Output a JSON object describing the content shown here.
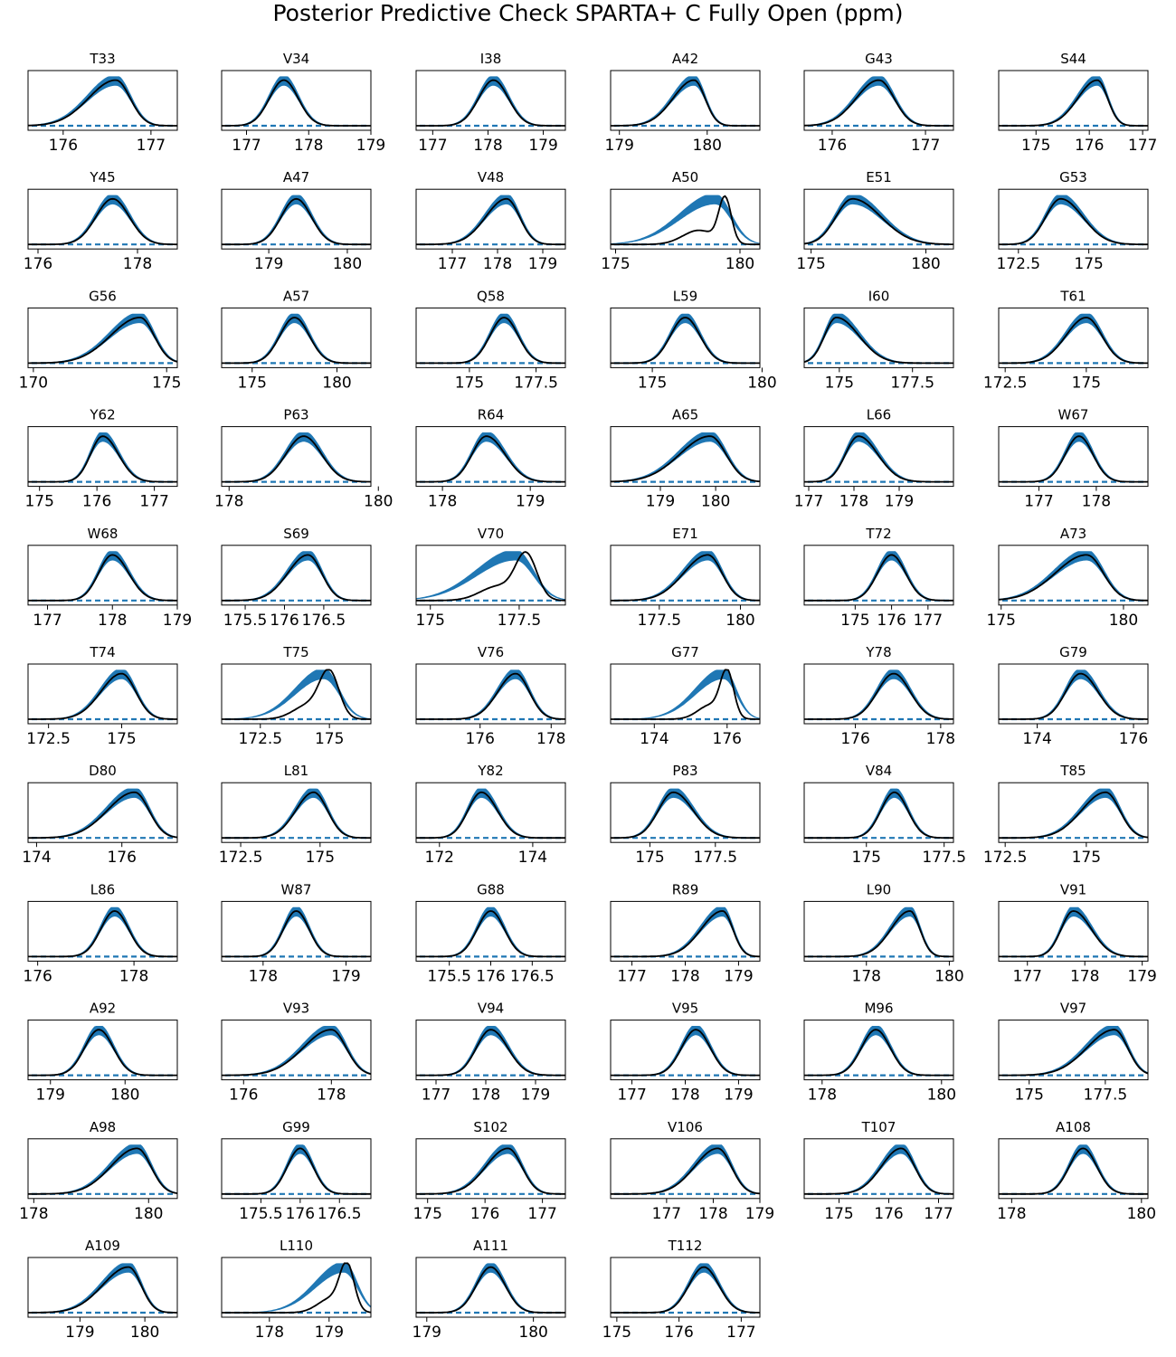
{
  "title": "Posterior Predictive Check SPARTA+ C Fully Open (ppm)",
  "colors": {
    "posterior_band": "#1f77b4",
    "observed_line": "#000000",
    "axes": "#000000"
  },
  "chart_data": [
    {
      "type": "line",
      "title": "T33",
      "xlim": [
        175.6,
        177.3
      ],
      "xticks": [
        176,
        177
      ],
      "peak": 176.6,
      "sd": 0.17,
      "skew": -1.5
    },
    {
      "type": "line",
      "title": "V34",
      "xlim": [
        176.6,
        179.0
      ],
      "xticks": [
        177,
        178,
        179
      ],
      "peak": 177.6,
      "sd": 0.24,
      "skew": 0
    },
    {
      "type": "line",
      "title": "I38",
      "xlim": [
        176.7,
        179.4
      ],
      "xticks": [
        177,
        178,
        179
      ],
      "peak": 178.1,
      "sd": 0.28,
      "skew": 0
    },
    {
      "type": "line",
      "title": "A42",
      "xlim": [
        178.9,
        180.6
      ],
      "xticks": [
        179,
        180
      ],
      "peak": 179.85,
      "sd": 0.13,
      "skew": -1.5
    },
    {
      "type": "line",
      "title": "G43",
      "xlim": [
        175.7,
        177.3
      ],
      "xticks": [
        176,
        177
      ],
      "peak": 176.5,
      "sd": 0.17,
      "skew": -0.8
    },
    {
      "type": "line",
      "title": "S44",
      "xlim": [
        174.3,
        177.1
      ],
      "xticks": [
        175,
        176,
        177
      ],
      "peak": 176.15,
      "sd": 0.2,
      "skew": -1.5
    },
    {
      "type": "line",
      "title": "Y45",
      "xlim": [
        175.8,
        178.8
      ],
      "xticks": [
        176,
        178
      ],
      "peak": 177.5,
      "sd": 0.35,
      "skew": 0
    },
    {
      "type": "line",
      "title": "A47",
      "xlim": [
        178.4,
        180.3
      ],
      "xticks": [
        179,
        180
      ],
      "peak": 179.35,
      "sd": 0.2,
      "skew": 0
    },
    {
      "type": "line",
      "title": "V48",
      "xlim": [
        176.2,
        179.5
      ],
      "xticks": [
        177,
        178,
        179
      ],
      "peak": 178.2,
      "sd": 0.3,
      "skew": -1
    },
    {
      "type": "line",
      "title": "A50",
      "xlim": [
        174.8,
        180.8
      ],
      "xticks": [
        175,
        180
      ],
      "peak": 179,
      "sd": 0.65,
      "skew": -2,
      "observed_peak": 179.4,
      "observed_sd": 0.25
    },
    {
      "type": "line",
      "title": "E51",
      "xlim": [
        174.7,
        181.2
      ],
      "xticks": [
        175,
        180
      ],
      "peak": 176.8,
      "sd": 0.75,
      "skew": 1.2
    },
    {
      "type": "line",
      "title": "G53",
      "xlim": [
        171.8,
        177.1
      ],
      "xticks": [
        172.5,
        175.0
      ],
      "peak": 174.0,
      "sd": 0.55,
      "skew": 0.8
    },
    {
      "type": "line",
      "title": "G56",
      "xlim": [
        169.8,
        175.4
      ],
      "xticks": [
        170,
        175
      ],
      "peak": 174.0,
      "sd": 0.55,
      "skew": -1.8
    },
    {
      "type": "line",
      "title": "A57",
      "xlim": [
        173.2,
        182.0
      ],
      "xticks": [
        175,
        180
      ],
      "peak": 177.5,
      "sd": 0.9,
      "skew": 0
    },
    {
      "type": "line",
      "title": "Q58",
      "xlim": [
        173.0,
        178.6
      ],
      "xticks": [
        175.0,
        177.5
      ],
      "peak": 176.3,
      "sd": 0.55,
      "skew": 0
    },
    {
      "type": "line",
      "title": "L59",
      "xlim": [
        173.1,
        179.9
      ],
      "xticks": [
        175,
        180
      ],
      "peak": 176.5,
      "sd": 0.7,
      "skew": 0
    },
    {
      "type": "line",
      "title": "I60",
      "xlim": [
        173.8,
        178.9
      ],
      "xticks": [
        175.0,
        177.5
      ],
      "peak": 174.9,
      "sd": 0.42,
      "skew": 1.5
    },
    {
      "type": "line",
      "title": "T61",
      "xlim": [
        172.3,
        176.9
      ],
      "xticks": [
        172.5,
        175.0
      ],
      "peak": 175.0,
      "sd": 0.5,
      "skew": -0.5
    },
    {
      "type": "line",
      "title": "Y62",
      "xlim": [
        174.8,
        177.4
      ],
      "xticks": [
        175,
        176,
        177
      ],
      "peak": 176.1,
      "sd": 0.22,
      "skew": 0.5
    },
    {
      "type": "line",
      "title": "P63",
      "xlim": [
        177.9,
        179.9
      ],
      "xticks": [
        178,
        180
      ],
      "peak": 179.0,
      "sd": 0.25,
      "skew": 0
    },
    {
      "type": "line",
      "title": "R64",
      "xlim": [
        177.7,
        179.4
      ],
      "xticks": [
        178,
        179
      ],
      "peak": 178.5,
      "sd": 0.17,
      "skew": 0.5
    },
    {
      "type": "line",
      "title": "A65",
      "xlim": [
        178.1,
        180.8
      ],
      "xticks": [
        179,
        180
      ],
      "peak": 179.9,
      "sd": 0.3,
      "skew": -1.5
    },
    {
      "type": "line",
      "title": "L66",
      "xlim": [
        176.9,
        180.2
      ],
      "xticks": [
        177,
        178,
        179
      ],
      "peak": 178.1,
      "sd": 0.3,
      "skew": 0.8
    },
    {
      "type": "line",
      "title": "W67",
      "xlim": [
        176.3,
        178.9
      ],
      "xticks": [
        177,
        178
      ],
      "peak": 177.7,
      "sd": 0.25,
      "skew": 0
    },
    {
      "type": "line",
      "title": "W68",
      "xlim": [
        176.7,
        179.0
      ],
      "xticks": [
        177,
        178,
        179
      ],
      "peak": 178.0,
      "sd": 0.22,
      "skew": 0.3
    },
    {
      "type": "line",
      "title": "S69",
      "xlim": [
        175.2,
        177.1
      ],
      "xticks": [
        175.5,
        176.0,
        176.5
      ],
      "peak": 176.3,
      "sd": 0.18,
      "skew": -0.8
    },
    {
      "type": "line",
      "title": "V70",
      "xlim": [
        174.6,
        178.8
      ],
      "xticks": [
        175.0,
        177.5
      ],
      "peak": 177.4,
      "sd": 0.5,
      "skew": -2,
      "observed_peak": 177.7,
      "observed_sd": 0.3
    },
    {
      "type": "line",
      "title": "E71",
      "xlim": [
        176.0,
        180.6
      ],
      "xticks": [
        177.5,
        180.0
      ],
      "peak": 179.0,
      "sd": 0.45,
      "skew": -1.2
    },
    {
      "type": "line",
      "title": "T72",
      "xlim": [
        173.6,
        177.7
      ],
      "xticks": [
        175,
        176,
        177
      ],
      "peak": 176.0,
      "sd": 0.4,
      "skew": 0
    },
    {
      "type": "line",
      "title": "A73",
      "xlim": [
        174.9,
        181.0
      ],
      "xticks": [
        175,
        180
      ],
      "peak": 178.5,
      "sd": 0.7,
      "skew": -1.5
    },
    {
      "type": "line",
      "title": "T74",
      "xlim": [
        171.8,
        176.9
      ],
      "xticks": [
        172.5,
        175.0
      ],
      "peak": 175.0,
      "sd": 0.5,
      "skew": -0.8
    },
    {
      "type": "line",
      "title": "T75",
      "xlim": [
        171.1,
        176.5
      ],
      "xticks": [
        172.5,
        175.0
      ],
      "peak": 174.8,
      "sd": 0.55,
      "skew": -1.5,
      "observed_peak": 175.0,
      "observed_sd": 0.35
    },
    {
      "type": "line",
      "title": "V76",
      "xlim": [
        174.2,
        178.4
      ],
      "xticks": [
        176,
        178
      ],
      "peak": 177.0,
      "sd": 0.4,
      "skew": -0.5
    },
    {
      "type": "line",
      "title": "G77",
      "xlim": [
        172.8,
        176.9
      ],
      "xticks": [
        174,
        176
      ],
      "peak": 175.9,
      "sd": 0.35,
      "skew": -2,
      "observed_peak": 176.0,
      "observed_sd": 0.18
    },
    {
      "type": "line",
      "title": "Y78",
      "xlim": [
        174.8,
        178.3
      ],
      "xticks": [
        176,
        178
      ],
      "peak": 176.9,
      "sd": 0.4,
      "skew": 0
    },
    {
      "type": "line",
      "title": "G79",
      "xlim": [
        173.2,
        176.3
      ],
      "xticks": [
        174,
        176
      ],
      "peak": 174.9,
      "sd": 0.32,
      "skew": 0.3
    },
    {
      "type": "line",
      "title": "D80",
      "xlim": [
        173.8,
        177.3
      ],
      "xticks": [
        174,
        176
      ],
      "peak": 176.3,
      "sd": 0.35,
      "skew": -1.5
    },
    {
      "type": "line",
      "title": "L81",
      "xlim": [
        171.9,
        176.6
      ],
      "xticks": [
        172.5,
        175.0
      ],
      "peak": 174.8,
      "sd": 0.45,
      "skew": -0.5
    },
    {
      "type": "line",
      "title": "Y82",
      "xlim": [
        171.5,
        174.7
      ],
      "xticks": [
        172,
        174
      ],
      "peak": 172.9,
      "sd": 0.3,
      "skew": 0.3
    },
    {
      "type": "line",
      "title": "P83",
      "xlim": [
        173.5,
        179.2
      ],
      "xticks": [
        175.0,
        177.5
      ],
      "peak": 175.9,
      "sd": 0.6,
      "skew": 0.5
    },
    {
      "type": "line",
      "title": "V84",
      "xlim": [
        173.0,
        177.8
      ],
      "xticks": [
        175.0,
        177.5
      ],
      "peak": 175.9,
      "sd": 0.45,
      "skew": 0
    },
    {
      "type": "line",
      "title": "T85",
      "xlim": [
        172.3,
        176.9
      ],
      "xticks": [
        172.5,
        175.0
      ],
      "peak": 175.6,
      "sd": 0.45,
      "skew": -1.2
    },
    {
      "type": "line",
      "title": "L86",
      "xlim": [
        175.8,
        178.9
      ],
      "xticks": [
        176,
        178
      ],
      "peak": 177.6,
      "sd": 0.3,
      "skew": 0
    },
    {
      "type": "line",
      "title": "W87",
      "xlim": [
        177.5,
        179.3
      ],
      "xticks": [
        178,
        179
      ],
      "peak": 178.4,
      "sd": 0.16,
      "skew": 0
    },
    {
      "type": "line",
      "title": "G88",
      "xlim": [
        175.1,
        176.9
      ],
      "xticks": [
        175.5,
        176.0,
        176.5
      ],
      "peak": 176.0,
      "sd": 0.17,
      "skew": 0
    },
    {
      "type": "line",
      "title": "R89",
      "xlim": [
        176.6,
        179.4
      ],
      "xticks": [
        177,
        178,
        179
      ],
      "peak": 178.7,
      "sd": 0.2,
      "skew": -1.8
    },
    {
      "type": "line",
      "title": "L90",
      "xlim": [
        176.5,
        180.1
      ],
      "xticks": [
        178,
        180
      ],
      "peak": 179.05,
      "sd": 0.25,
      "skew": -1.5
    },
    {
      "type": "line",
      "title": "V91",
      "xlim": [
        176.5,
        179.1
      ],
      "xticks": [
        177,
        178,
        179
      ],
      "peak": 177.8,
      "sd": 0.22,
      "skew": 0.8
    },
    {
      "type": "line",
      "title": "A92",
      "xlim": [
        178.7,
        180.7
      ],
      "xticks": [
        179,
        180
      ],
      "peak": 179.65,
      "sd": 0.2,
      "skew": 0
    },
    {
      "type": "line",
      "title": "V93",
      "xlim": [
        175.5,
        178.9
      ],
      "xticks": [
        176,
        178
      ],
      "peak": 178.0,
      "sd": 0.35,
      "skew": -1.5
    },
    {
      "type": "line",
      "title": "V94",
      "xlim": [
        176.6,
        179.6
      ],
      "xticks": [
        177,
        178,
        179
      ],
      "peak": 178.1,
      "sd": 0.3,
      "skew": 0.3
    },
    {
      "type": "line",
      "title": "V95",
      "xlim": [
        176.6,
        179.4
      ],
      "xticks": [
        177,
        178,
        179
      ],
      "peak": 178.2,
      "sd": 0.28,
      "skew": 0
    },
    {
      "type": "line",
      "title": "M96",
      "xlim": [
        177.7,
        180.2
      ],
      "xticks": [
        178,
        180
      ],
      "peak": 178.9,
      "sd": 0.25,
      "skew": 0
    },
    {
      "type": "line",
      "title": "V97",
      "xlim": [
        174.0,
        178.9
      ],
      "xticks": [
        175.0,
        177.5
      ],
      "peak": 177.8,
      "sd": 0.45,
      "skew": -1.8
    },
    {
      "type": "line",
      "title": "A98",
      "xlim": [
        177.9,
        180.5
      ],
      "xticks": [
        178,
        180
      ],
      "peak": 179.8,
      "sd": 0.25,
      "skew": -1.5
    },
    {
      "type": "line",
      "title": "G99",
      "xlim": [
        175.0,
        176.9
      ],
      "xticks": [
        175.5,
        176.0,
        176.5
      ],
      "peak": 176.0,
      "sd": 0.17,
      "skew": 0
    },
    {
      "type": "line",
      "title": "S102",
      "xlim": [
        174.8,
        177.4
      ],
      "xticks": [
        175,
        176,
        177
      ],
      "peak": 176.4,
      "sd": 0.25,
      "skew": -1
    },
    {
      "type": "line",
      "title": "V106",
      "xlim": [
        175.8,
        179.0
      ],
      "xticks": [
        177,
        178,
        179
      ],
      "peak": 178.1,
      "sd": 0.3,
      "skew": -1.2
    },
    {
      "type": "line",
      "title": "T107",
      "xlim": [
        174.3,
        177.3
      ],
      "xticks": [
        175,
        176,
        177
      ],
      "peak": 176.25,
      "sd": 0.28,
      "skew": -0.8
    },
    {
      "type": "line",
      "title": "A108",
      "xlim": [
        177.8,
        180.1
      ],
      "xticks": [
        178,
        180
      ],
      "peak": 179.1,
      "sd": 0.22,
      "skew": 0
    },
    {
      "type": "line",
      "title": "A109",
      "xlim": [
        178.2,
        180.5
      ],
      "xticks": [
        179,
        180
      ],
      "peak": 179.75,
      "sd": 0.2,
      "skew": -1.8
    },
    {
      "type": "line",
      "title": "L110",
      "xlim": [
        177.2,
        179.7
      ],
      "xticks": [
        178,
        179
      ],
      "peak": 179.25,
      "sd": 0.22,
      "skew": -2,
      "observed_peak": 179.3,
      "observed_sd": 0.12
    },
    {
      "type": "line",
      "title": "A111",
      "xlim": [
        178.9,
        180.3
      ],
      "xticks": [
        179,
        180
      ],
      "peak": 179.6,
      "sd": 0.14,
      "skew": 0
    },
    {
      "type": "line",
      "title": "T112",
      "xlim": [
        174.9,
        177.3
      ],
      "xticks": [
        175,
        176,
        177
      ],
      "peak": 176.4,
      "sd": 0.25,
      "skew": 0
    }
  ]
}
